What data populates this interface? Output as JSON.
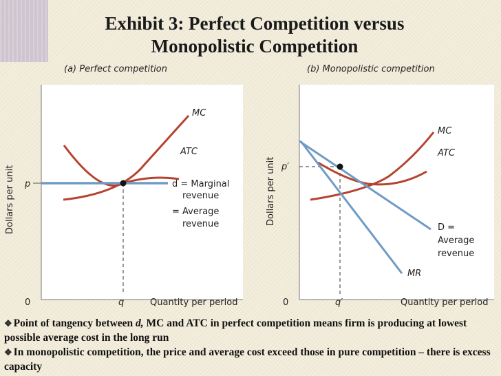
{
  "title": {
    "line1": "Exhibit 3: Perfect Competition versus",
    "line2": "Monopolistic Competition"
  },
  "panel_a": {
    "heading": "(a) Perfect competition",
    "y_axis_label": "Dollars per unit",
    "x_axis_label": "Quantity per period",
    "origin_label": "0",
    "price_label": "p",
    "quantity_label": "q",
    "mc_label": "MC",
    "atc_label": "ATC",
    "demand_label_line1": "d = Marginal",
    "demand_label_line2": "revenue",
    "demand_label_line3": "= Average",
    "demand_label_line4": "revenue"
  },
  "panel_b": {
    "heading": "(b) Monopolistic competition",
    "y_axis_label": "Dollars per unit",
    "x_axis_label": "Quantity per period",
    "origin_label": "0",
    "price_label": "p′",
    "quantity_label": "q′",
    "mc_label": "MC",
    "atc_label": "ATC",
    "demand_label_line1": "D =",
    "demand_label_line2": "Average",
    "demand_label_line3": "revenue",
    "mr_label": "MR"
  },
  "bullets": {
    "b1_part1": "Point of tangency between ",
    "b1_italic": "d,",
    "b1_part2": " MC and ATC in perfect competition means firm is producing at lowest possible average cost in the long run",
    "b2": "In monopolistic competition, the price and average cost exceed those in pure competition – there is excess capacity"
  },
  "colors": {
    "cost_curve": "#b5432f",
    "demand_curve": "#6f9bc4",
    "panel_bg": "#ffffff"
  }
}
